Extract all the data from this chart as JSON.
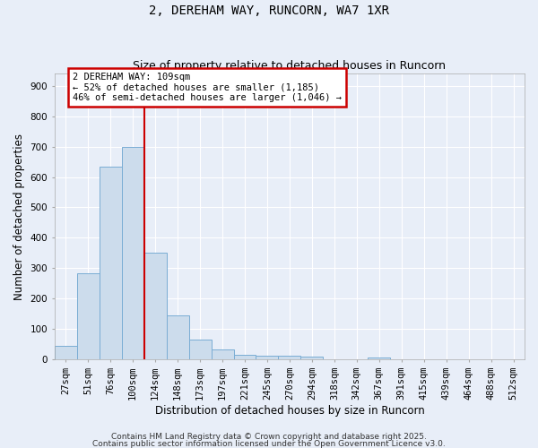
{
  "title_line1": "2, DEREHAM WAY, RUNCORN, WA7 1XR",
  "title_line2": "Size of property relative to detached houses in Runcorn",
  "xlabel": "Distribution of detached houses by size in Runcorn",
  "ylabel": "Number of detached properties",
  "bar_color": "#ccdcec",
  "bar_edge_color": "#7aadd4",
  "categories": [
    "27sqm",
    "51sqm",
    "76sqm",
    "100sqm",
    "124sqm",
    "148sqm",
    "173sqm",
    "197sqm",
    "221sqm",
    "245sqm",
    "270sqm",
    "294sqm",
    "318sqm",
    "342sqm",
    "367sqm",
    "391sqm",
    "415sqm",
    "439sqm",
    "464sqm",
    "488sqm",
    "512sqm"
  ],
  "values": [
    45,
    285,
    635,
    700,
    350,
    145,
    67,
    32,
    15,
    13,
    12,
    10,
    0,
    0,
    8,
    0,
    0,
    0,
    0,
    0,
    0
  ],
  "red_line_x": 3.5,
  "annotation_text": "2 DEREHAM WAY: 109sqm\n← 52% of detached houses are smaller (1,185)\n46% of semi-detached houses are larger (1,046) →",
  "annotation_box_color": "#ffffff",
  "annotation_box_edge": "#cc0000",
  "ylim": [
    0,
    940
  ],
  "yticks": [
    0,
    100,
    200,
    300,
    400,
    500,
    600,
    700,
    800,
    900
  ],
  "background_color": "#e8eef8",
  "plot_bg_color": "#e8eef8",
  "grid_color": "#ffffff",
  "footer_line1": "Contains HM Land Registry data © Crown copyright and database right 2025.",
  "footer_line2": "Contains public sector information licensed under the Open Government Licence v3.0.",
  "title_fontsize": 10,
  "subtitle_fontsize": 9,
  "axis_label_fontsize": 8.5,
  "tick_fontsize": 7.5,
  "annotation_fontsize": 7.5,
  "footer_fontsize": 6.5
}
